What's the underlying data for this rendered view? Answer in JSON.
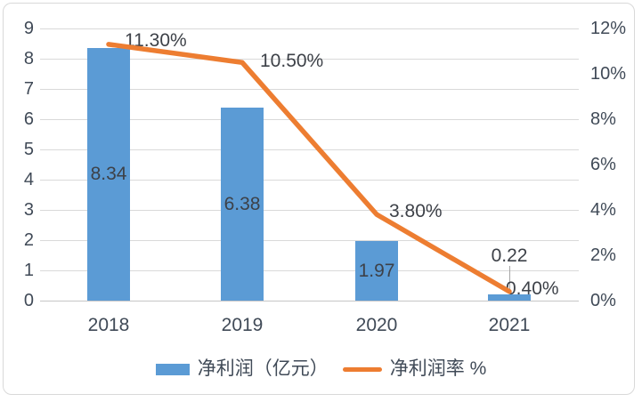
{
  "chart_data": {
    "type": "combo",
    "title": "",
    "categories": [
      "2018",
      "2019",
      "2020",
      "2021"
    ],
    "series": [
      {
        "name": "净利润（亿元）",
        "type": "bar",
        "axis": "left",
        "values": [
          8.34,
          6.38,
          1.97,
          0.22
        ],
        "data_labels": [
          "8.34",
          "6.38",
          "1.97",
          "0.22"
        ],
        "color": "#5B9BD5"
      },
      {
        "name": "净利润率 %",
        "type": "line",
        "axis": "right",
        "values": [
          11.3,
          10.5,
          3.8,
          0.4
        ],
        "data_labels": [
          "11.30%",
          "10.50%",
          "3.80%",
          "0.40%"
        ],
        "color": "#ED7D31"
      }
    ],
    "left_axis": {
      "min": 0,
      "max": 9,
      "step": 1,
      "ticks": [
        "0",
        "1",
        "2",
        "3",
        "4",
        "5",
        "6",
        "7",
        "8",
        "9"
      ]
    },
    "right_axis": {
      "min": 0,
      "max": 12,
      "step": 2,
      "ticks": [
        "0%",
        "2%",
        "4%",
        "6%",
        "8%",
        "10%",
        "12%"
      ]
    },
    "gridlines": true,
    "legend_position": "bottom"
  },
  "legend": {
    "items": [
      {
        "label": "净利润（亿元）",
        "swatch": "bar",
        "color": "#5B9BD5"
      },
      {
        "label": "净利润率 %",
        "swatch": "line",
        "color": "#ED7D31"
      }
    ]
  },
  "colors": {
    "bar": "#5B9BD5",
    "line": "#ED7D31",
    "gridline": "#D9D9D9",
    "axis_line": "#C6C6C6",
    "tick_text": "#404A57",
    "label_text": "#3D4148",
    "frame_border": "#D9D9D9",
    "background": "#FFFFFF",
    "leader_line": "#A6A6A6"
  }
}
